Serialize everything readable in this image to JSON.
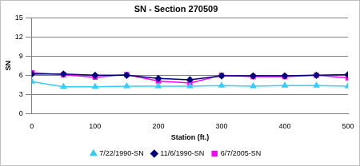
{
  "chart_data": {
    "type": "line",
    "title": "SN - Section 270509",
    "x_label": "Station (ft.)",
    "y_label": "SN",
    "x": [
      0,
      50,
      100,
      150,
      200,
      250,
      300,
      350,
      400,
      450,
      500
    ],
    "series": [
      {
        "name": "7/22/1990-SN",
        "color": "#33ccff",
        "marker": "triangle",
        "values": [
          5.0,
          4.2,
          4.2,
          4.3,
          4.3,
          4.3,
          4.4,
          4.3,
          4.4,
          4.4,
          4.3
        ]
      },
      {
        "name": "11/6/1990-SN",
        "color": "#000080",
        "marker": "diamond",
        "values": [
          6.2,
          6.2,
          6.0,
          6.0,
          5.5,
          5.3,
          5.9,
          5.9,
          5.9,
          6.0,
          6.1
        ]
      },
      {
        "name": "6/7/2005-SN",
        "color": "#ff00ff",
        "marker": "square",
        "values": [
          6.4,
          6.1,
          5.7,
          6.1,
          5.1,
          4.8,
          6.0,
          5.8,
          5.8,
          6.0,
          5.6
        ]
      }
    ],
    "xlim": [
      0,
      500
    ],
    "xticks": [
      0,
      100,
      200,
      300,
      400,
      500
    ],
    "ylim": [
      0,
      15
    ],
    "yticks": [
      0,
      3,
      6,
      9,
      12,
      15
    ],
    "grid": "y",
    "legend": "bottom"
  }
}
